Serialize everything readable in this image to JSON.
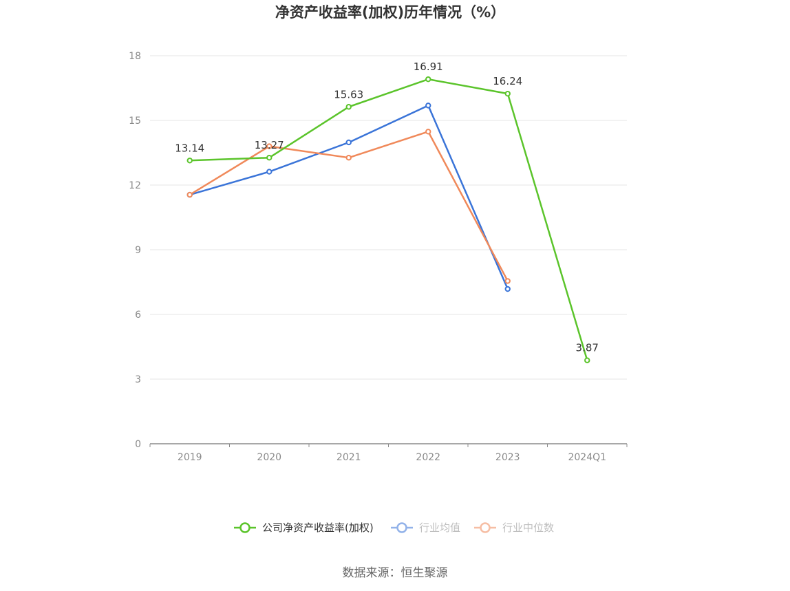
{
  "chart_data": {
    "type": "line",
    "title": "净资产收益率(加权)历年情况（%）",
    "categories": [
      "2019",
      "2020",
      "2021",
      "2022",
      "2023",
      "2024Q1"
    ],
    "y_ticks": [
      "0",
      "3",
      "6",
      "9",
      "12",
      "15",
      "18"
    ],
    "ylim": [
      0,
      18
    ],
    "grid": true,
    "legend_position": "bottom",
    "series": [
      {
        "name": "公司净资产收益率(加权)",
        "color": "#5bc42b",
        "values": [
          13.14,
          13.27,
          15.63,
          16.91,
          16.24,
          3.87
        ],
        "labels": [
          "13.14",
          "13.27",
          "15.63",
          "16.91",
          "16.24",
          "3.87"
        ]
      },
      {
        "name": "行业均值",
        "color": "#3a74d8",
        "values": [
          11.55,
          12.62,
          13.98,
          15.69,
          7.18,
          null
        ]
      },
      {
        "name": "行业中位数",
        "color": "#f0895a",
        "values": [
          11.55,
          13.8,
          13.27,
          14.48,
          7.55,
          null
        ]
      }
    ]
  },
  "source_text": "数据来源：恒生聚源"
}
